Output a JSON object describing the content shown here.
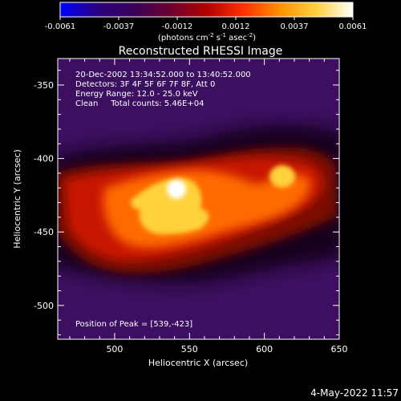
{
  "colorbar": {
    "ticks": [
      "-0.0061",
      "-0.0037",
      "-0.0012",
      "0.0012",
      "0.0037",
      "0.0061"
    ],
    "unit_main": "(photons cm",
    "unit_sup1": "-2",
    "unit_s": " s",
    "unit_sup2": "-1",
    "unit_asec": " asec",
    "unit_sup3": "-2",
    "unit_close": ")",
    "stops": [
      "#0000ff",
      "#2a0080",
      "#3a005a",
      "#6a0030",
      "#b00000",
      "#ff3000",
      "#ff9000",
      "#ffd040",
      "#ffffff"
    ]
  },
  "plot": {
    "title": "Reconstructed RHESSI Image",
    "info_lines": [
      "20-Dec-2002 13:34:52.000 to 13:40:52.000",
      "Detectors: 3F 4F 5F 6F 7F 8F, Att 0",
      "Energy Range: 12.0 - 25.0 keV",
      "Clean     Total counts: 5.46E+04"
    ],
    "peak_label": "Position of Peak = [539,-423]",
    "xlabel": "Heliocentric X (arcsec)",
    "ylabel": "Heliocentric Y (arcsec)",
    "x_ticks": [
      "500",
      "550",
      "600",
      "650"
    ],
    "y_ticks": [
      "-350",
      "-400",
      "-450",
      "-500"
    ],
    "xlim": [
      462,
      650
    ],
    "ylim": [
      -523,
      -332
    ],
    "x_tick_values": [
      500,
      550,
      600,
      650
    ],
    "y_tick_values": [
      -350,
      -400,
      -450,
      -500
    ],
    "peak": [
      539,
      -423
    ],
    "palette": {
      "background": "#3c0f60",
      "dark_band": "#14041e",
      "deep_red": "#7a0a05",
      "red": "#c81200",
      "orange": "#ff6a00",
      "yellow": "#ffd23a",
      "white": "#ffffff"
    }
  },
  "footer": {
    "timestamp": "4-May-2022 11:57"
  }
}
